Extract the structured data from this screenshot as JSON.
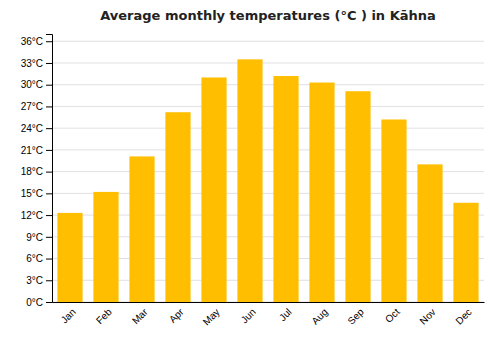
{
  "chart_data": {
    "type": "bar",
    "title": "Average monthly temperatures (°C ) in Kāhna",
    "categories": [
      "Jan",
      "Feb",
      "Mar",
      "Apr",
      "May",
      "Jun",
      "Jul",
      "Aug",
      "Sep",
      "Oct",
      "Nov",
      "Dec"
    ],
    "values": [
      12.3,
      15.2,
      20.1,
      26.2,
      31.0,
      33.5,
      31.2,
      30.3,
      29.1,
      25.2,
      19.0,
      13.7
    ],
    "color": "#FFBF00",
    "ylim": [
      0,
      37
    ],
    "yticks": [
      {
        "value": 0,
        "label": "0°C"
      },
      {
        "value": 3,
        "label": "3°C"
      },
      {
        "value": 6,
        "label": "6°C"
      },
      {
        "value": 9,
        "label": "9°C"
      },
      {
        "value": 12,
        "label": "12°C"
      },
      {
        "value": 15,
        "label": "15°C"
      },
      {
        "value": 18,
        "label": "18°C"
      },
      {
        "value": 21,
        "label": "21°C"
      },
      {
        "value": 24,
        "label": "24°C"
      },
      {
        "value": 27,
        "label": "27°C"
      },
      {
        "value": 30,
        "label": "30°C"
      },
      {
        "value": 33,
        "label": "33°C"
      },
      {
        "value": 36,
        "label": "36°C"
      }
    ],
    "grid": true
  }
}
